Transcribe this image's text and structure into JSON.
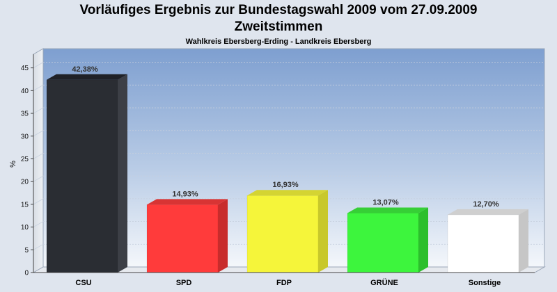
{
  "title": "Vorläufiges Ergebnis zur Bundestagswahl 2009 vom 27.09.2009",
  "subtitle": "Zweitstimmen",
  "subsubtitle": "Wahlkreis Ebersberg-Erding - Landkreis Ebersberg",
  "chart_data": {
    "type": "bar",
    "title": "Vorläufiges Ergebnis zur Bundestagswahl 2009 vom 27.09.2009",
    "subtitle": "Zweitstimmen",
    "ylabel": "%",
    "xlabel": "",
    "ylim": [
      0,
      48
    ],
    "yticks": [
      0,
      5,
      10,
      15,
      20,
      25,
      30,
      35,
      40,
      45
    ],
    "grid": true,
    "categories": [
      "CSU",
      "SPD",
      "FDP",
      "GRÜNE",
      "Sonstige"
    ],
    "values": [
      42.38,
      14.93,
      16.93,
      13.07,
      12.7
    ],
    "value_labels": [
      "42,38%",
      "14,93%",
      "16,93%",
      "13,07%",
      "12,70%"
    ],
    "colors": [
      "#2a2d33",
      "#ff3b3b",
      "#f5f53a",
      "#3df53d",
      "#ffffff"
    ],
    "side_colors": [
      "#3c3f46",
      "#c82c2c",
      "#c8c82a",
      "#2cbf2c",
      "#c6c6c6"
    ],
    "top_colors": [
      "#1f2127",
      "#d83434",
      "#d4d432",
      "#36cf36",
      "#cfcfcf"
    ]
  }
}
